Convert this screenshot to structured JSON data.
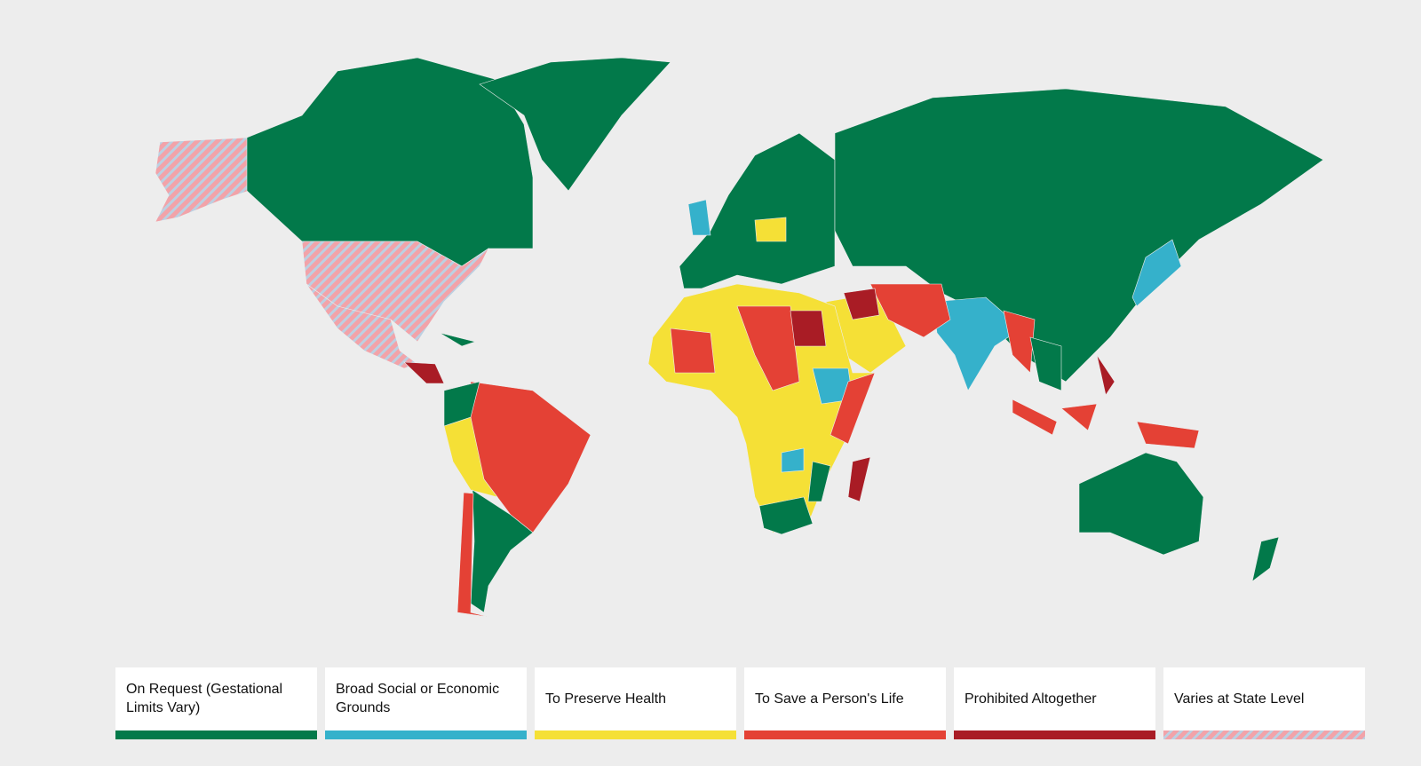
{
  "legend": [
    {
      "label": "On Request (Gestational Limits Vary)",
      "color": "#02794a"
    },
    {
      "label": "Broad Social or Economic Grounds",
      "color": "#35b1cb"
    },
    {
      "label": "To Preserve Health",
      "color": "#f5e036"
    },
    {
      "label": "To Save a Person's Life",
      "color": "#e44135"
    },
    {
      "label": "Prohibited Altogether",
      "color": "#a91c25"
    },
    {
      "label": "Varies at State Level",
      "colors": [
        "#f2a3a9",
        "#bcd0e2"
      ]
    }
  ]
}
